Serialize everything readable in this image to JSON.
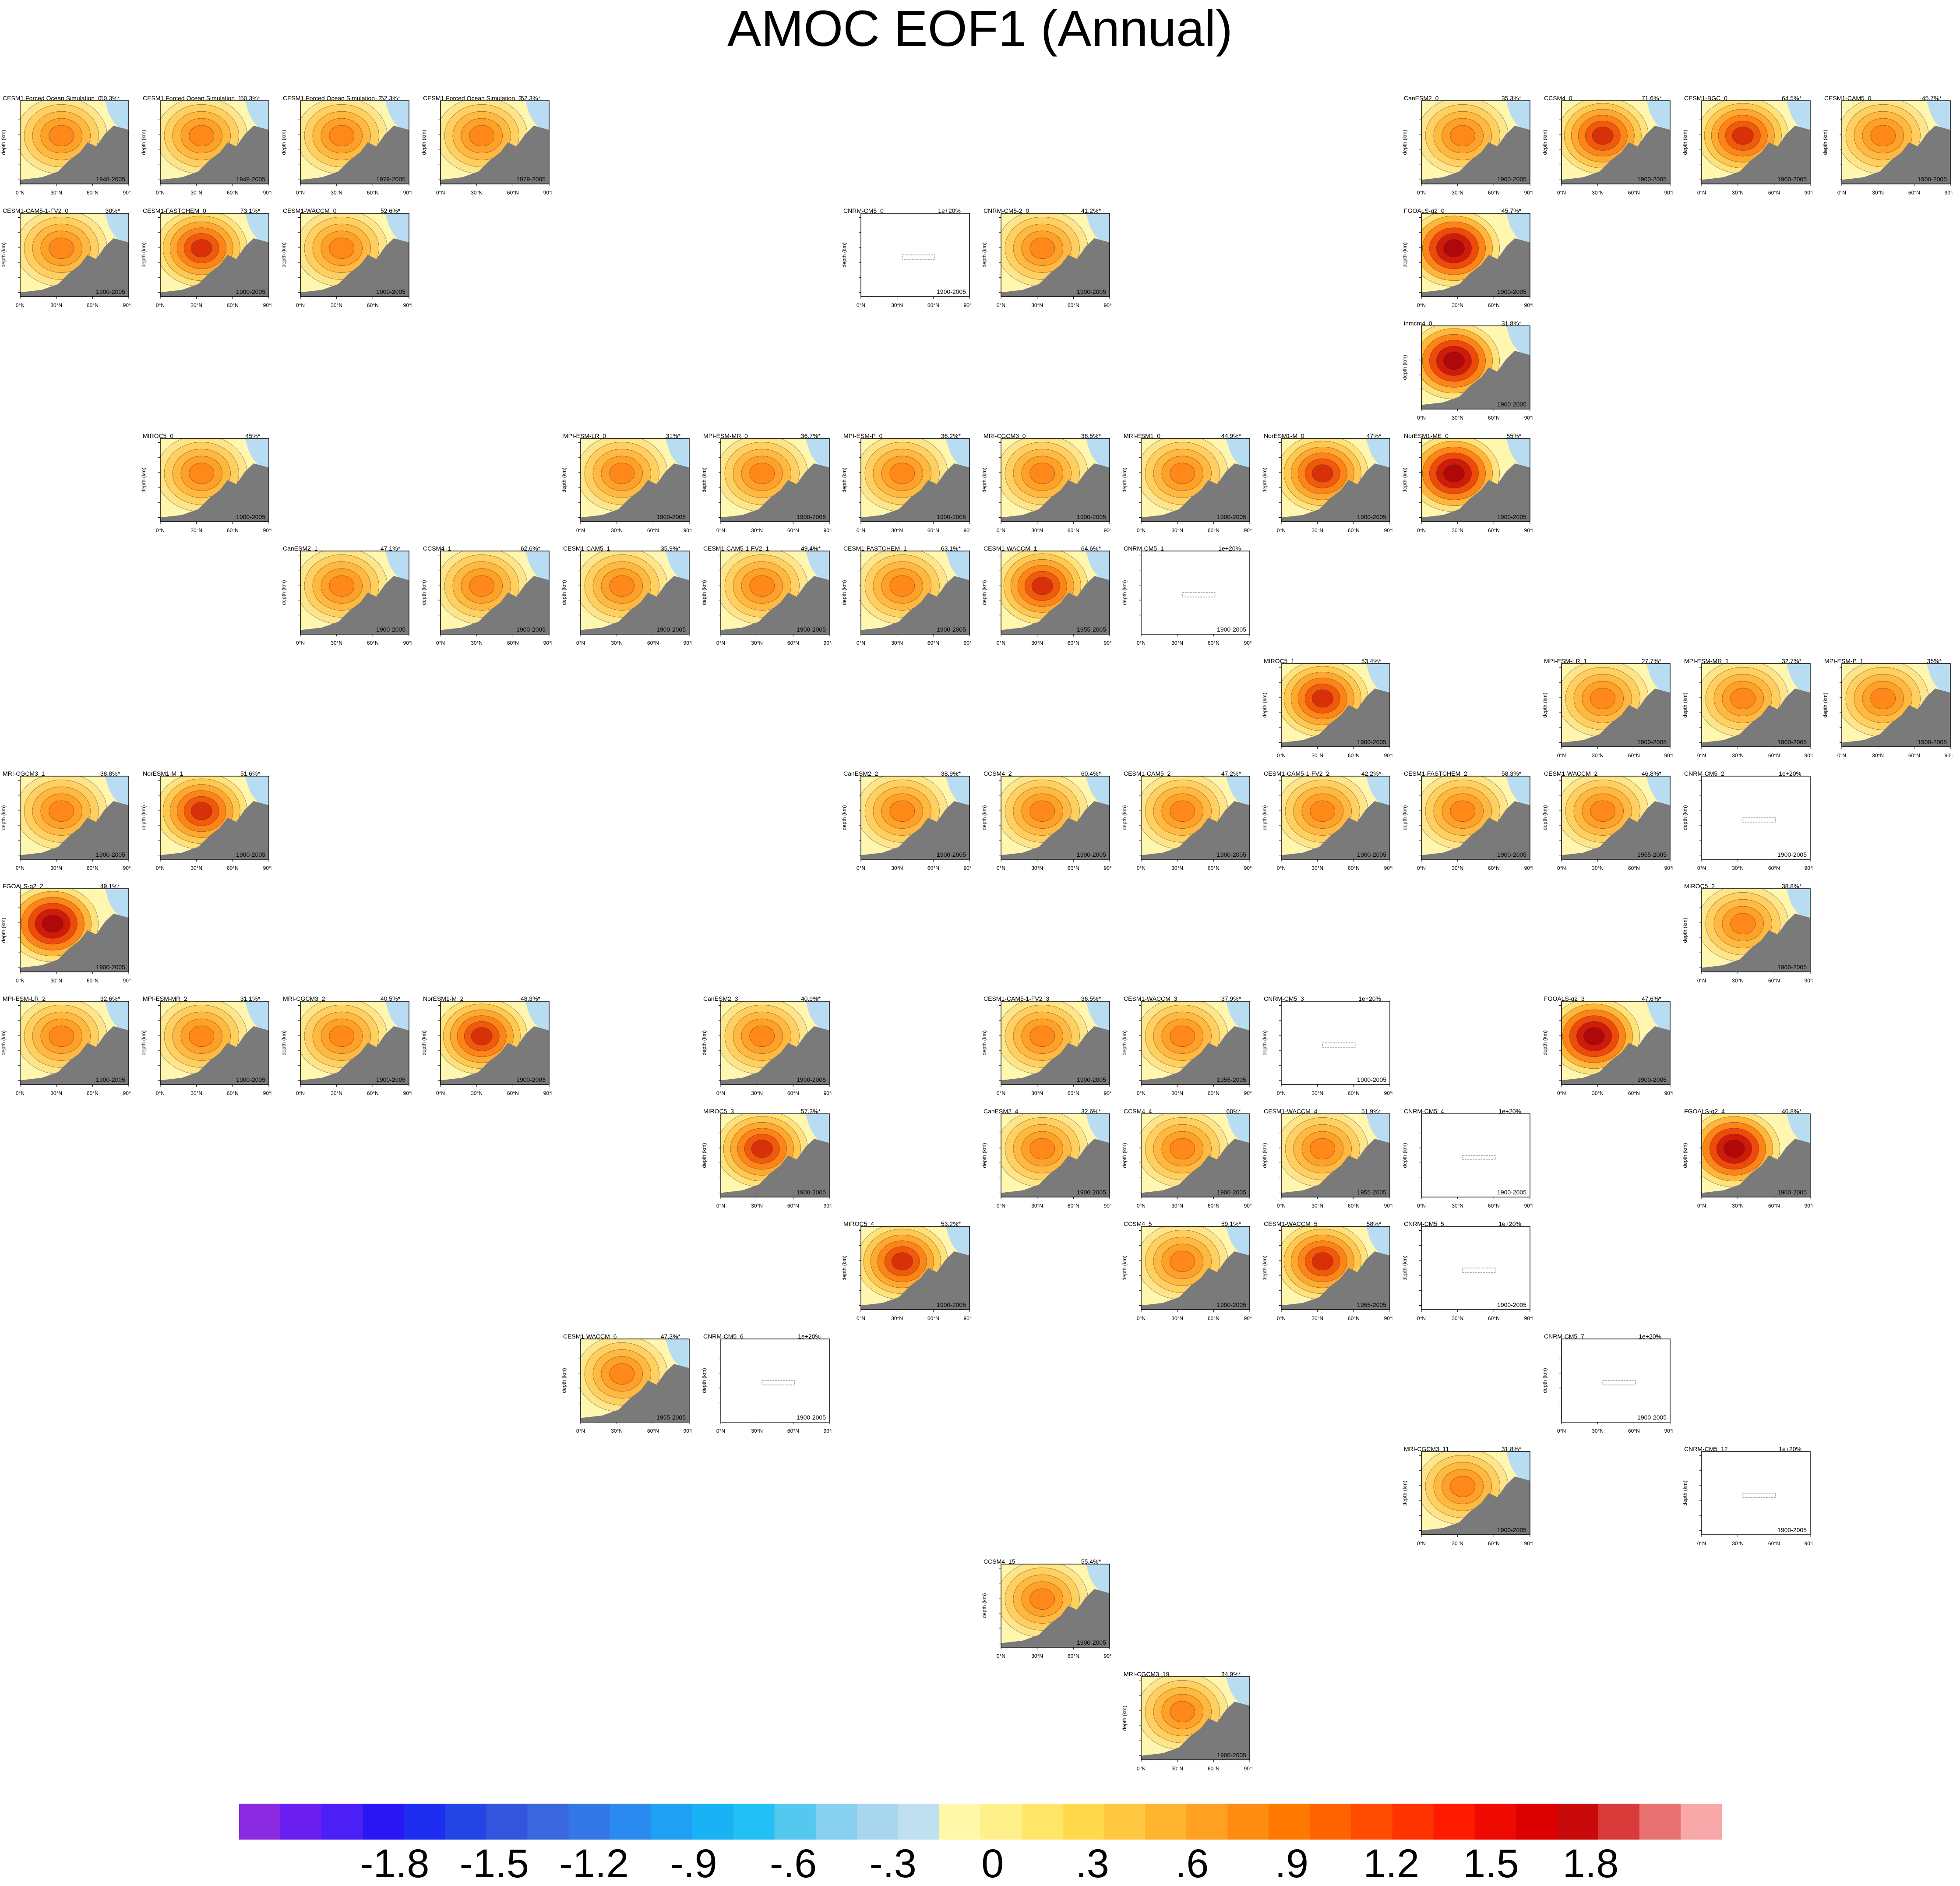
{
  "title": "AMOC EOF1 (Annual)",
  "chart_data": {
    "type": "heatmap",
    "title": "AMOC EOF1 (Annual)",
    "ylabel": "depth (km)",
    "x_ticks": [
      "0°N",
      "30°N",
      "60°N",
      "90°N"
    ],
    "panels": [
      {
        "name": "CESM1 Forced Ocean Simulation_0",
        "var": "50.3%*",
        "years": "1948-2005",
        "row": 0,
        "col": 0,
        "style": "forced"
      },
      {
        "name": "CESM1 Forced Ocean Simulation_1",
        "var": "50.3%*",
        "years": "1948-2005",
        "row": 0,
        "col": 1,
        "style": "forced"
      },
      {
        "name": "CESM1 Forced Ocean Simulation_2",
        "var": "52.3%*",
        "years": "1979-2005",
        "row": 0,
        "col": 2,
        "style": "forced"
      },
      {
        "name": "CESM1 Forced Ocean Simulation_3",
        "var": "52.3%*",
        "years": "1979-2005",
        "row": 0,
        "col": 3,
        "style": "forced"
      },
      {
        "name": "CanESM2_0",
        "var": "35.3%*",
        "years": "1900-2005",
        "row": 0,
        "col": 10,
        "style": "warm"
      },
      {
        "name": "CCSM4_0",
        "var": "71.6%*",
        "years": "1900-2005",
        "row": 0,
        "col": 11,
        "style": "strong"
      },
      {
        "name": "CESM1-BGC_0",
        "var": "64.5%*",
        "years": "1900-2005",
        "row": 0,
        "col": 12,
        "style": "strong"
      },
      {
        "name": "CESM1-CAM5_0",
        "var": "45.7%*",
        "years": "1900-2005",
        "row": 0,
        "col": 13,
        "style": "warm"
      },
      {
        "name": "CESM1-CAM5-1-FV2_0",
        "var": "30%*",
        "years": "1900-2005",
        "row": 1,
        "col": 0,
        "style": "warm"
      },
      {
        "name": "CESM1-FASTCHEM_0",
        "var": "73.1%*",
        "years": "1900-2005",
        "row": 1,
        "col": 1,
        "style": "strong"
      },
      {
        "name": "CESM1-WACCM_0",
        "var": "52.6%*",
        "years": "1900-2005",
        "row": 1,
        "col": 2,
        "style": "warm"
      },
      {
        "name": "CNRM-CM5_0",
        "var": "1e+20%",
        "years": "1900-2005",
        "row": 1,
        "col": 6,
        "style": "empty"
      },
      {
        "name": "CNRM-CM5-2_0",
        "var": "41.2%*",
        "years": "1900-2005",
        "row": 1,
        "col": 7,
        "style": "warm"
      },
      {
        "name": "FGOALS-g2_0",
        "var": "45.7%*",
        "years": "1900-2005",
        "row": 1,
        "col": 10,
        "style": "deep"
      },
      {
        "name": "inmcm4_0",
        "var": "31.8%*",
        "years": "1900-2005",
        "row": 2,
        "col": 10,
        "style": "deep"
      },
      {
        "name": "MIROC5_0",
        "var": "45%*",
        "years": "1900-2005",
        "row": 3,
        "col": 1,
        "style": "warm"
      },
      {
        "name": "MPI-ESM-LR_0",
        "var": "31%*",
        "years": "1900-2005",
        "row": 3,
        "col": 4,
        "style": "warm"
      },
      {
        "name": "MPI-ESM-MR_0",
        "var": "36.7%*",
        "years": "1900-2005",
        "row": 3,
        "col": 5,
        "style": "warm"
      },
      {
        "name": "MPI-ESM-P_0",
        "var": "36.2%*",
        "years": "1900-2005",
        "row": 3,
        "col": 6,
        "style": "warm"
      },
      {
        "name": "MRI-CGCM3_0",
        "var": "38.5%*",
        "years": "1900-2005",
        "row": 3,
        "col": 7,
        "style": "warm"
      },
      {
        "name": "MRI-ESM1_0",
        "var": "44.9%*",
        "years": "1900-2005",
        "row": 3,
        "col": 8,
        "style": "warm"
      },
      {
        "name": "NorESM1-M_0",
        "var": "47%*",
        "years": "1900-2005",
        "row": 3,
        "col": 9,
        "style": "strong"
      },
      {
        "name": "NorESM1-ME_0",
        "var": "55%*",
        "years": "1900-2005",
        "row": 3,
        "col": 10,
        "style": "deep"
      },
      {
        "name": "CanESM2_1",
        "var": "47.1%*",
        "years": "1900-2005",
        "row": 4,
        "col": 2,
        "style": "warm"
      },
      {
        "name": "CCSM4_1",
        "var": "62.6%*",
        "years": "1900-2005",
        "row": 4,
        "col": 3,
        "style": "warm"
      },
      {
        "name": "CESM1-CAM5_1",
        "var": "35.9%*",
        "years": "1900-2005",
        "row": 4,
        "col": 4,
        "style": "warm"
      },
      {
        "name": "CESM1-CAM5-1-FV2_1",
        "var": "49.4%*",
        "years": "1900-2005",
        "row": 4,
        "col": 5,
        "style": "warm"
      },
      {
        "name": "CESM1-FASTCHEM_1",
        "var": "63.1%*",
        "years": "1900-2005",
        "row": 4,
        "col": 6,
        "style": "warm"
      },
      {
        "name": "CESM1-WACCM_1",
        "var": "64.6%*",
        "years": "1955-2005",
        "row": 4,
        "col": 7,
        "style": "strong"
      },
      {
        "name": "CNRM-CM5_1",
        "var": "1e+20%",
        "years": "1900-2005",
        "row": 4,
        "col": 8,
        "style": "empty"
      },
      {
        "name": "MIROC5_1",
        "var": "53.4%*",
        "years": "1900-2005",
        "row": 5,
        "col": 9,
        "style": "strong"
      },
      {
        "name": "MPI-ESM-LR_1",
        "var": "27.7%*",
        "years": "1900-2005",
        "row": 5,
        "col": 11,
        "style": "warm"
      },
      {
        "name": "MPI-ESM-MR_1",
        "var": "32.7%*",
        "years": "1900-2005",
        "row": 5,
        "col": 12,
        "style": "warm"
      },
      {
        "name": "MPI-ESM-P_1",
        "var": "35%*",
        "years": "1900-2005",
        "row": 5,
        "col": 13,
        "style": "warm"
      },
      {
        "name": "MRI-CGCM3_1",
        "var": "38.8%*",
        "years": "1900-2005",
        "row": 6,
        "col": 0,
        "style": "warm"
      },
      {
        "name": "NorESM1-M_1",
        "var": "51.6%*",
        "years": "1900-2005",
        "row": 6,
        "col": 1,
        "style": "strong"
      },
      {
        "name": "CanESM2_2",
        "var": "38.9%*",
        "years": "1900-2005",
        "row": 6,
        "col": 6,
        "style": "warm"
      },
      {
        "name": "CCSM4_2",
        "var": "60.4%*",
        "years": "1900-2005",
        "row": 6,
        "col": 7,
        "style": "warm"
      },
      {
        "name": "CESM1-CAM5_2",
        "var": "47.2%*",
        "years": "1900-2005",
        "row": 6,
        "col": 8,
        "style": "warm"
      },
      {
        "name": "CESM1-CAM5-1-FV2_2",
        "var": "42.2%*",
        "years": "1900-2005",
        "row": 6,
        "col": 9,
        "style": "warm"
      },
      {
        "name": "CESM1-FASTCHEM_2",
        "var": "58.3%*",
        "years": "1900-2005",
        "row": 6,
        "col": 10,
        "style": "warm"
      },
      {
        "name": "CESM1-WACCM_2",
        "var": "46.8%*",
        "years": "1955-2005",
        "row": 6,
        "col": 11,
        "style": "warm"
      },
      {
        "name": "CNRM-CM5_2",
        "var": "1e+20%",
        "years": "1900-2005",
        "row": 6,
        "col": 12,
        "style": "empty"
      },
      {
        "name": "FGOALS-g2_2",
        "var": "49.1%*",
        "years": "1900-2005",
        "row": 7,
        "col": 0,
        "style": "deep"
      },
      {
        "name": "MIROC5_2",
        "var": "38.8%*",
        "years": "1900-2005",
        "row": 7,
        "col": 12,
        "style": "warm"
      },
      {
        "name": "MPI-ESM-LR_2",
        "var": "32.6%*",
        "years": "1900-2005",
        "row": 8,
        "col": 0,
        "style": "warm"
      },
      {
        "name": "MPI-ESM-MR_2",
        "var": "31.1%*",
        "years": "1900-2005",
        "row": 8,
        "col": 1,
        "style": "warm"
      },
      {
        "name": "MRI-CGCM3_2",
        "var": "40.5%*",
        "years": "1900-2005",
        "row": 8,
        "col": 2,
        "style": "warm"
      },
      {
        "name": "NorESM1-M_2",
        "var": "48.3%*",
        "years": "1900-2005",
        "row": 8,
        "col": 3,
        "style": "strong"
      },
      {
        "name": "CanESM2_3",
        "var": "40.9%*",
        "years": "1900-2005",
        "row": 8,
        "col": 5,
        "style": "warm"
      },
      {
        "name": "CESM1-CAM5-1-FV2_3",
        "var": "36.5%*",
        "years": "1900-2005",
        "row": 8,
        "col": 7,
        "style": "warm"
      },
      {
        "name": "CESM1-WACCM_3",
        "var": "37.9%*",
        "years": "1955-2005",
        "row": 8,
        "col": 8,
        "style": "warm"
      },
      {
        "name": "CNRM-CM5_3",
        "var": "1e+20%",
        "years": "1900-2005",
        "row": 8,
        "col": 9,
        "style": "empty"
      },
      {
        "name": "FGOALS-g2_3",
        "var": "47.6%*",
        "years": "1900-2005",
        "row": 8,
        "col": 11,
        "style": "deep"
      },
      {
        "name": "MIROC5_3",
        "var": "57.3%*",
        "years": "1900-2005",
        "row": 9,
        "col": 5,
        "style": "strong"
      },
      {
        "name": "CanESM2_4",
        "var": "32.6%*",
        "years": "1900-2005",
        "row": 9,
        "col": 7,
        "style": "warm"
      },
      {
        "name": "CCSM4_4",
        "var": "60%*",
        "years": "1900-2005",
        "row": 9,
        "col": 8,
        "style": "warm"
      },
      {
        "name": "CESM1-WACCM_4",
        "var": "51.9%*",
        "years": "1955-2005",
        "row": 9,
        "col": 9,
        "style": "warm"
      },
      {
        "name": "CNRM-CM5_4",
        "var": "1e+20%",
        "years": "1900-2005",
        "row": 9,
        "col": 10,
        "style": "empty"
      },
      {
        "name": "FGOALS-g2_4",
        "var": "46.8%*",
        "years": "1900-2005",
        "row": 9,
        "col": 12,
        "style": "deep"
      },
      {
        "name": "MIROC5_4",
        "var": "53.2%*",
        "years": "1900-2005",
        "row": 10,
        "col": 6,
        "style": "strong"
      },
      {
        "name": "CCSM4_5",
        "var": "59.1%*",
        "years": "1900-2005",
        "row": 10,
        "col": 8,
        "style": "warm"
      },
      {
        "name": "CESM1-WACCM_5",
        "var": "58%*",
        "years": "1955-2005",
        "row": 10,
        "col": 9,
        "style": "strong"
      },
      {
        "name": "CNRM-CM5_5",
        "var": "1e+20%",
        "years": "1900-2005",
        "row": 10,
        "col": 10,
        "style": "empty"
      },
      {
        "name": "CESM1-WACCM_6",
        "var": "47.3%*",
        "years": "1955-2005",
        "row": 11,
        "col": 4,
        "style": "warm"
      },
      {
        "name": "CNRM-CM5_6",
        "var": "1e+20%",
        "years": "1900-2005",
        "row": 11,
        "col": 5,
        "style": "empty"
      },
      {
        "name": "CNRM-CM5_7",
        "var": "1e+20%",
        "years": "1900-2005",
        "row": 11,
        "col": 11,
        "style": "empty"
      },
      {
        "name": "MRI-CGCM3_11",
        "var": "31.8%*",
        "years": "1900-2005",
        "row": 12,
        "col": 10,
        "style": "warm"
      },
      {
        "name": "CNRM-CM5_12",
        "var": "1e+20%",
        "years": "1900-2005",
        "row": 12,
        "col": 12,
        "style": "empty"
      },
      {
        "name": "CCSM4_15",
        "var": "55.4%*",
        "years": "1900-2005",
        "row": 13,
        "col": 7,
        "style": "warm"
      },
      {
        "name": "MRI-CGCM3_19",
        "var": "34.9%*",
        "years": "1900-2005",
        "row": 14,
        "col": 8,
        "style": "warm"
      }
    ],
    "colorbar": {
      "labels": [
        "-1.8",
        "-1.5",
        "-1.2",
        "-.9",
        "-.6",
        "-.3",
        "0",
        ".3",
        ".6",
        ".9",
        "1.2",
        "1.5",
        "1.8"
      ],
      "colors": [
        "#8a2be2",
        "#6a1ff0",
        "#4b1ff5",
        "#2a16f5",
        "#1e2ef0",
        "#2445e6",
        "#3355dd",
        "#3a66e0",
        "#3478e8",
        "#2a8af0",
        "#1ea0f5",
        "#18b2f5",
        "#22c0f5",
        "#55c8f0",
        "#88d0ef",
        "#a8d6ee",
        "#bfe0f0",
        "#fff8a8",
        "#fff08a",
        "#ffe666",
        "#ffd94a",
        "#ffc840",
        "#ffb52e",
        "#ffa020",
        "#ff8c10",
        "#ff7800",
        "#ff6200",
        "#ff4c00",
        "#ff3300",
        "#ff1a00",
        "#ee0a00",
        "#dd0000",
        "#c80a0a",
        "#d83a3a",
        "#e87070",
        "#f8a8a8"
      ]
    }
  }
}
